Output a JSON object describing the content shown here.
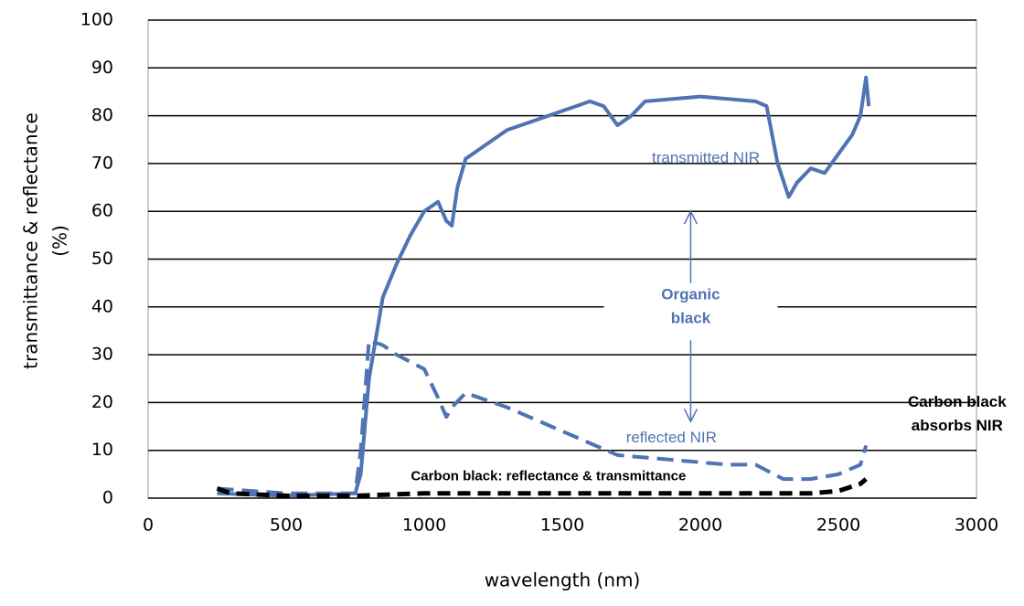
{
  "chart_data": {
    "type": "line",
    "xlabel": "wavelength (nm)",
    "ylabel": [
      "transmittance & reflectance",
      "(%)"
    ],
    "xlim": [
      0,
      3000
    ],
    "xticks": [
      0,
      500,
      1000,
      1500,
      2000,
      2500,
      3000
    ],
    "ylim": [
      0,
      100
    ],
    "yticks": [
      0,
      10,
      20,
      30,
      40,
      50,
      60,
      70,
      80,
      90,
      100
    ],
    "grid": true,
    "series": [
      {
        "color": "#4f73b3",
        "style": "solid",
        "x": [
          250,
          500,
          750,
          770,
          800,
          850,
          900,
          950,
          1000,
          1050,
          1080,
          1100,
          1120,
          1150,
          1200,
          1300,
          1400,
          1500,
          1600,
          1650,
          1700,
          1750,
          1800,
          1900,
          2000,
          2100,
          2200,
          2240,
          2280,
          2320,
          2350,
          2400,
          2450,
          2500,
          2550,
          2580,
          2600,
          2610
        ],
        "values": [
          1,
          0.5,
          1,
          5,
          25,
          42,
          49,
          55,
          60,
          62,
          58,
          57,
          65,
          71,
          73,
          77,
          79,
          81,
          83,
          82,
          78,
          80,
          83,
          83.5,
          84,
          83.5,
          83,
          82,
          70,
          63,
          66,
          69,
          68,
          72,
          76,
          80,
          88,
          82
        ]
      },
      {
        "color": "#4f73b3",
        "style": "dashed",
        "x": [
          250,
          500,
          750,
          770,
          800,
          850,
          900,
          1000,
          1050,
          1080,
          1100,
          1150,
          1300,
          1500,
          1700,
          1900,
          2100,
          2200,
          2300,
          2400,
          2500,
          2580,
          2600
        ],
        "values": [
          2,
          1,
          1,
          10,
          33,
          32,
          30,
          27,
          21,
          17,
          19,
          22,
          19,
          14,
          9,
          8,
          7,
          7,
          4,
          4,
          5,
          7,
          11
        ]
      },
      {
        "color": "#000000",
        "style": "dashed",
        "x": [
          250,
          300,
          500,
          750,
          1000,
          1500,
          2000,
          2400,
          2500,
          2580,
          2600
        ],
        "values": [
          2,
          1,
          0.5,
          0.5,
          1,
          1,
          1,
          1,
          1.5,
          3,
          4
        ]
      }
    ],
    "annotations": [
      {
        "lines": [
          "transmitted NIR"
        ],
        "color": "#4f73b3",
        "bold": false,
        "x": 2020,
        "y": 71
      },
      {
        "lines": [
          "Organic",
          "black"
        ],
        "color": "#4f73b3",
        "bold": true,
        "x": 1965,
        "y": 40
      },
      {
        "lines": [
          "reflected NIR"
        ],
        "color": "#4f73b3",
        "bold": false,
        "x": 1895,
        "y": 12.5
      },
      {
        "lines": [
          "Carbon black",
          "absorbs NIR"
        ],
        "color": "#000000",
        "bold": true,
        "x": 2930,
        "y": 17.5
      },
      {
        "lines": [
          "Carbon black: reflectance & transmittance"
        ],
        "color": "#000000",
        "bold": true,
        "x": 1450,
        "y": 4.5
      }
    ]
  }
}
